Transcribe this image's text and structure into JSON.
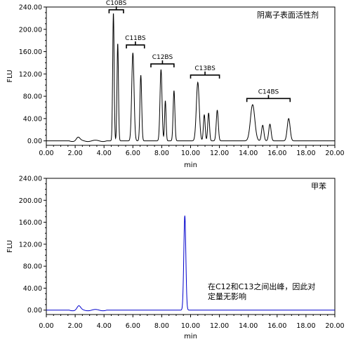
{
  "chart_data": [
    {
      "type": "line",
      "legend_text": "阴离子表面活性剂",
      "xlabel": "min",
      "ylabel": "FLU",
      "xlim": [
        0,
        20
      ],
      "ylim": [
        -8,
        240
      ],
      "x_ticks": [
        "0.00",
        "2.00",
        "4.00",
        "6.00",
        "8.00",
        "10.00",
        "12.00",
        "14.00",
        "16.00",
        "18.00",
        "20.00"
      ],
      "y_ticks": [
        "0.00",
        "40.00",
        "80.00",
        "120.00",
        "160.00",
        "200.00",
        "240.00"
      ],
      "line_color": "#000000",
      "baseline": 0,
      "peaks": [
        {
          "t": 2.2,
          "h": 6,
          "w": 0.12
        },
        {
          "t": 4.65,
          "h": 230,
          "w": 0.05
        },
        {
          "t": 4.95,
          "h": 175,
          "w": 0.05
        },
        {
          "t": 6.0,
          "h": 158,
          "w": 0.08
        },
        {
          "t": 6.55,
          "h": 118,
          "w": 0.06
        },
        {
          "t": 7.95,
          "h": 128,
          "w": 0.07
        },
        {
          "t": 8.25,
          "h": 72,
          "w": 0.05
        },
        {
          "t": 8.85,
          "h": 90,
          "w": 0.06
        },
        {
          "t": 10.5,
          "h": 105,
          "w": 0.1
        },
        {
          "t": 10.95,
          "h": 47,
          "w": 0.06
        },
        {
          "t": 11.25,
          "h": 50,
          "w": 0.06
        },
        {
          "t": 11.85,
          "h": 55,
          "w": 0.07
        },
        {
          "t": 14.3,
          "h": 65,
          "w": 0.15
        },
        {
          "t": 15.0,
          "h": 28,
          "w": 0.08
        },
        {
          "t": 15.5,
          "h": 30,
          "w": 0.08
        },
        {
          "t": 16.8,
          "h": 40,
          "w": 0.1
        }
      ],
      "groups": [
        {
          "label": "C10BS",
          "x_start": 4.35,
          "x_end": 5.35,
          "y": 235
        },
        {
          "label": "C11BS",
          "x_start": 5.55,
          "x_end": 6.8,
          "y": 172
        },
        {
          "label": "C12BS",
          "x_start": 7.25,
          "x_end": 8.85,
          "y": 138
        },
        {
          "label": "C13BS",
          "x_start": 10.0,
          "x_end": 12.0,
          "y": 118
        },
        {
          "label": "C14BS",
          "x_start": 13.9,
          "x_end": 16.9,
          "y": 76
        }
      ]
    },
    {
      "type": "line",
      "legend_text": "甲苯",
      "annotation_line1": "在C12和C13之间出峰，因此对",
      "annotation_line2": "定量无影响",
      "xlabel": "min",
      "ylabel": "FLU",
      "xlim": [
        0,
        20
      ],
      "ylim": [
        -8,
        240
      ],
      "x_ticks": [
        "0.00",
        "2.00",
        "4.00",
        "6.00",
        "8.00",
        "10.00",
        "12.00",
        "14.00",
        "16.00",
        "18.00",
        "20.00"
      ],
      "y_ticks": [
        "0.00",
        "40.00",
        "80.00",
        "120.00",
        "160.00",
        "200.00",
        "240.00"
      ],
      "line_color": "#0000cc",
      "baseline": 0,
      "peaks": [
        {
          "t": 2.25,
          "h": 7,
          "w": 0.12
        },
        {
          "t": 9.6,
          "h": 172,
          "w": 0.07
        }
      ],
      "groups": []
    }
  ]
}
